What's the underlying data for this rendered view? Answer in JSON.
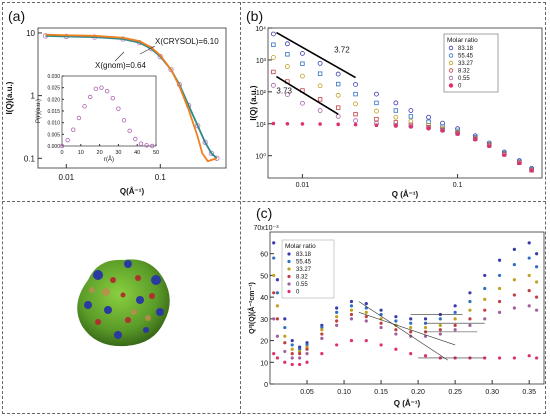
{
  "panels": {
    "a": {
      "label": "(a)",
      "xlabel": "Q(Å⁻¹)",
      "ylabel": "I(Q)(a.u.)",
      "ann_crysol": "X(CRYSOL)=6.10",
      "ann_gnom": "X(gnom)=0.64",
      "xticks": [
        "0.01",
        "0.1"
      ],
      "yticks": [
        "10",
        "1",
        "0.1"
      ],
      "inset": {
        "xlabel": "r(Å)",
        "ylabel": "P(r)(a.u.)",
        "xticks": [
          "0",
          "10",
          "20",
          "30",
          "40",
          "50"
        ],
        "yticks": [
          "0.000",
          "0.005",
          "0.010",
          "0.015",
          "0.020",
          "0.025",
          "0.030"
        ]
      }
    },
    "b": {
      "label": "(b)",
      "xlabel": "Q (Å⁻¹)",
      "ylabel": "I(Q) (a.u.)",
      "slope1": "3.72",
      "slope2": "3.73",
      "legend_title": "Molar ratio",
      "xticks": [
        "0.01",
        "0.1"
      ],
      "yticks": [
        "10⁴",
        "10³",
        "10²",
        "10¹",
        "10⁰"
      ]
    },
    "c": {
      "label": "(c)",
      "xlabel": "Q (Å⁻¹)",
      "ylabel": "Q²I(Q)(Å⁻²cm⁻¹)",
      "y_multiplier": "70x10⁻³",
      "legend_title": "Molar ratio",
      "xticks": [
        "0.05",
        "0.10",
        "0.15",
        "0.20",
        "0.25",
        "0.30",
        "0.35"
      ],
      "yticks": [
        "60",
        "50",
        "40",
        "30",
        "20",
        "10",
        "0"
      ]
    }
  },
  "chart_data": [
    {
      "type": "line",
      "panel": "a",
      "title": "",
      "xlabel": "Q(Å⁻¹)",
      "ylabel": "I(Q)(a.u.)",
      "xscale": "log",
      "yscale": "log",
      "xlim": [
        0.005,
        0.5
      ],
      "ylim": [
        0.07,
        12
      ],
      "series": [
        {
          "name": "",
          "style": "open-circles",
          "color": "#c080c0",
          "x": [
            0.006,
            0.01,
            0.02,
            0.04,
            0.06,
            0.08,
            0.1,
            0.13,
            0.16,
            0.2,
            0.25,
            0.3,
            0.35,
            0.4
          ],
          "y": [
            9,
            8.8,
            8.6,
            8.0,
            7.0,
            5.6,
            4.2,
            2.6,
            1.5,
            0.7,
            0.33,
            0.18,
            0.12,
            0.1
          ]
        },
        {
          "name": "",
          "style": "line",
          "color": "#2e8a8a",
          "x": [
            0.006,
            0.01,
            0.02,
            0.04,
            0.06,
            0.08,
            0.1,
            0.13,
            0.16,
            0.2,
            0.25,
            0.3,
            0.35,
            0.4
          ],
          "y": [
            9,
            8.8,
            8.6,
            8.0,
            7.0,
            5.6,
            4.2,
            2.6,
            1.5,
            0.7,
            0.33,
            0.18,
            0.12,
            0.1
          ]
        },
        {
          "name": "",
          "style": "line",
          "color": "#f08020",
          "x": [
            0.006,
            0.01,
            0.02,
            0.04,
            0.06,
            0.08,
            0.1,
            0.13,
            0.16,
            0.2,
            0.25,
            0.28,
            0.32,
            0.4
          ],
          "y": [
            9.4,
            9.2,
            9.0,
            8.4,
            7.4,
            5.9,
            4.4,
            2.6,
            1.4,
            0.6,
            0.22,
            0.12,
            0.09,
            0.1
          ]
        }
      ]
    },
    {
      "type": "line",
      "panel": "a-inset",
      "title": "",
      "xlabel": "r(Å)",
      "ylabel": "P(r)(a.u.)",
      "xlim": [
        0,
        50
      ],
      "ylim": [
        0,
        0.03
      ],
      "series": [
        {
          "name": "",
          "style": "open-circles",
          "color": "#b060b0",
          "x": [
            0,
            3,
            6,
            9,
            12,
            15,
            18,
            21,
            24,
            27,
            30,
            33,
            36,
            39,
            42,
            45,
            48
          ],
          "y": [
            0,
            0.0025,
            0.007,
            0.012,
            0.017,
            0.021,
            0.0245,
            0.025,
            0.0235,
            0.0205,
            0.016,
            0.011,
            0.0065,
            0.003,
            0.001,
            0.0003,
            0
          ]
        }
      ]
    },
    {
      "type": "scatter",
      "panel": "b",
      "title": "",
      "xlabel": "Q (Å⁻¹)",
      "ylabel": "I(Q) (a.u.)",
      "xscale": "log",
      "yscale": "log",
      "xlim": [
        0.006,
        0.35
      ],
      "ylim": [
        0.2,
        10000
      ],
      "x": [
        0.0065,
        0.008,
        0.01,
        0.013,
        0.017,
        0.022,
        0.03,
        0.04,
        0.05,
        0.065,
        0.08,
        0.1,
        0.13,
        0.16,
        0.2,
        0.25,
        0.3
      ],
      "series": [
        {
          "name": "83.18",
          "y": [
            6500,
            3200,
            1600,
            780,
            360,
            170,
            85,
            45,
            26,
            16,
            10.5,
            7.0,
            4.2,
            2.5,
            1.3,
            0.7,
            0.4
          ]
        },
        {
          "name": "55.45",
          "y": [
            3000,
            1500,
            760,
            370,
            175,
            85,
            45,
            26,
            17,
            11.5,
            8.2,
            6.0,
            3.8,
            2.3,
            1.2,
            0.65,
            0.38
          ]
        },
        {
          "name": "33.27",
          "y": [
            1200,
            620,
            310,
            155,
            78,
            42,
            25,
            16,
            12,
            9.0,
            7.0,
            5.4,
            3.5,
            2.2,
            1.15,
            0.62,
            0.36
          ]
        },
        {
          "name": "8.32",
          "y": [
            420,
            210,
            110,
            58,
            32,
            20,
            14,
            11,
            9.2,
            7.8,
            6.5,
            5.1,
            3.4,
            2.1,
            1.1,
            0.6,
            0.35
          ]
        },
        {
          "name": "0.55",
          "y": [
            160,
            82,
            44,
            26,
            17,
            12.5,
            10.2,
            9.0,
            8.3,
            7.3,
            6.2,
            4.9,
            3.3,
            2.05,
            1.1,
            0.6,
            0.35
          ]
        },
        {
          "name": "0",
          "y": [
            10.2,
            10.0,
            9.9,
            9.8,
            9.6,
            9.4,
            9.0,
            8.5,
            8.0,
            7.2,
            6.1,
            4.8,
            3.2,
            2.0,
            1.05,
            0.58,
            0.34
          ]
        }
      ],
      "annotations": [
        {
          "text": "3.72"
        },
        {
          "text": "3.73"
        }
      ]
    },
    {
      "type": "scatter",
      "panel": "c",
      "title": "",
      "xlabel": "Q (Å⁻¹)",
      "ylabel": "Q²I(Q)(Å⁻²cm⁻¹)",
      "xlim": [
        0,
        0.37
      ],
      "ylim": [
        0,
        70
      ],
      "x": [
        0.005,
        0.01,
        0.02,
        0.03,
        0.04,
        0.05,
        0.07,
        0.09,
        0.11,
        0.13,
        0.15,
        0.17,
        0.19,
        0.21,
        0.23,
        0.25,
        0.27,
        0.29,
        0.31,
        0.33,
        0.35,
        0.36
      ],
      "series": [
        {
          "name": "83.18",
          "y": [
            65,
            48,
            30,
            20,
            17,
            19,
            27,
            35,
            38,
            37,
            34,
            31,
            30,
            30,
            32,
            36,
            42,
            50,
            57,
            62,
            65,
            60
          ]
        },
        {
          "name": "55.45",
          "y": [
            58,
            42,
            26,
            18,
            16,
            18,
            26,
            33,
            36,
            35,
            32,
            29,
            28,
            28,
            30,
            33,
            38,
            44,
            50,
            55,
            58,
            54
          ]
        },
        {
          "name": "33.27",
          "y": [
            50,
            36,
            22,
            16,
            15,
            17,
            25,
            31,
            34,
            33,
            30,
            27,
            26,
            26,
            27,
            30,
            34,
            39,
            44,
            48,
            50,
            47
          ]
        },
        {
          "name": "8.32",
          "y": [
            42,
            30,
            19,
            14,
            14,
            16,
            23,
            29,
            32,
            31,
            28,
            25,
            24,
            24,
            25,
            27,
            30,
            34,
            38,
            41,
            43,
            40
          ]
        },
        {
          "name": "0.55",
          "y": [
            30,
            22,
            15,
            12,
            12,
            14,
            21,
            27,
            30,
            29,
            26,
            23,
            22,
            22,
            23,
            25,
            27,
            30,
            33,
            35,
            36,
            34
          ]
        },
        {
          "name": "0",
          "y": [
            14,
            12,
            10,
            9,
            9,
            10,
            14,
            18,
            20,
            20,
            18,
            16,
            14,
            13,
            12,
            12,
            12,
            12,
            12,
            12,
            13,
            12
          ]
        }
      ]
    }
  ],
  "colors": {
    "s0": "#3a3ab0",
    "s1": "#3070c0",
    "s2": "#c0a020",
    "s3": "#c04040",
    "s4": "#a060a0",
    "s5": "#e0306a"
  }
}
